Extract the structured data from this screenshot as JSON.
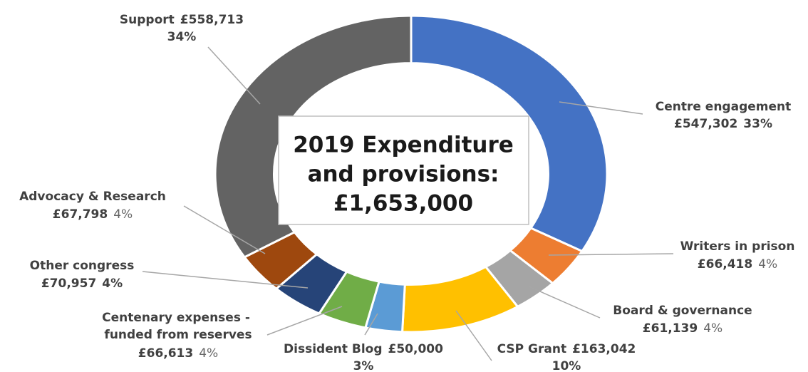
{
  "chart_data": {
    "type": "donut",
    "title": [
      "2019 Expenditure",
      "and provisions:",
      "£1,653,000"
    ],
    "categories": [
      "Centre engagement",
      "Writers in prison",
      "Board & governance",
      "CSP Grant",
      "Dissident Blog",
      "Centenary expenses - funded from reserves",
      "Other congress",
      "Advocacy & Research",
      "Support"
    ],
    "values": [
      547302,
      66418,
      61139,
      163042,
      50000,
      66613,
      70957,
      67798,
      558713
    ],
    "value_labels": [
      "£547,302",
      "£66,418",
      "£61,139",
      "£163,042",
      "£50,000",
      "£66,613",
      "£70,957",
      "£67,798",
      "£558,713"
    ],
    "percent_labels": [
      "33%",
      "4%",
      "4%",
      "10%",
      "3%",
      "4%",
      "4%",
      "4%",
      "34%"
    ],
    "colors": [
      "#4472c4",
      "#ed7d31",
      "#a5a5a5",
      "#ffc000",
      "#5b9bd5",
      "#70ad47",
      "#264478",
      "#9e480e",
      "#636363"
    ]
  }
}
